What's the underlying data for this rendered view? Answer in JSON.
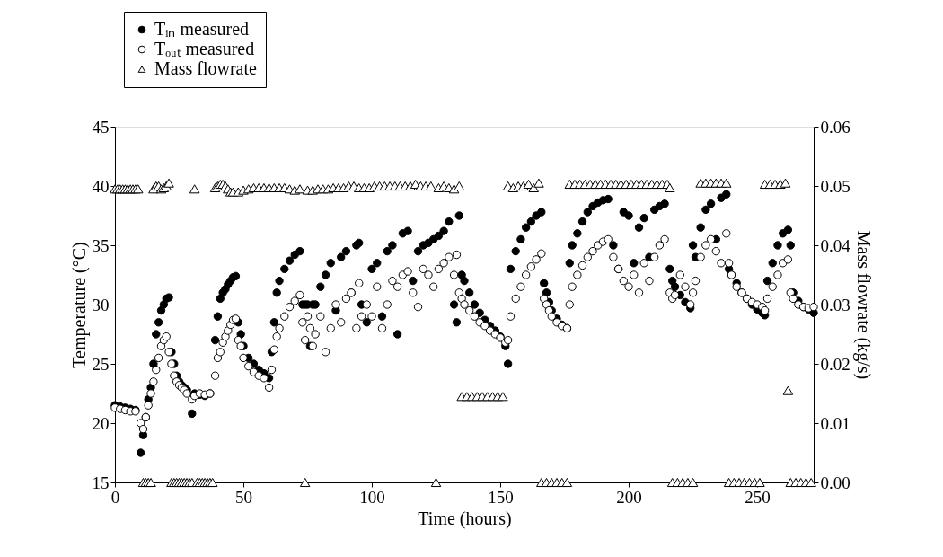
{
  "chart_data": {
    "type": "scatter",
    "xlabel": "Time (hours)",
    "ylabel": "Temperature (°C)",
    "y2label": "Mass flowrate (kg/s)",
    "xlim": [
      0,
      272
    ],
    "xticks": [
      0,
      50,
      100,
      150,
      200,
      250
    ],
    "ylim": [
      15,
      45
    ],
    "yticks": [
      15,
      20,
      25,
      30,
      35,
      40,
      45
    ],
    "y2lim": [
      0,
      0.06
    ],
    "y2ticks": [
      {
        "value": 0,
        "label": "0.00"
      },
      0.01,
      0.02,
      0.03,
      0.04,
      0.05,
      0.06
    ],
    "legend": "top left",
    "series": [
      {
        "name": "Tᵢₙ measured",
        "color": "#000000",
        "marker": "circle",
        "x": [
          0,
          2,
          4,
          6,
          8,
          10,
          11,
          12,
          13,
          14,
          15,
          16,
          17,
          18,
          19,
          20,
          21,
          22,
          23,
          24,
          25,
          26,
          27,
          28,
          30,
          31,
          33,
          35,
          37,
          39,
          40,
          41,
          42,
          43,
          44,
          45,
          46,
          47,
          48,
          49,
          50,
          52,
          54,
          56,
          58,
          60,
          61,
          62,
          63,
          64,
          66,
          68,
          70,
          72,
          73,
          74,
          75,
          76,
          77,
          78,
          80,
          82,
          84,
          86,
          88,
          90,
          92,
          94,
          95,
          96,
          98,
          100,
          102,
          104,
          106,
          108,
          110,
          112,
          114,
          116,
          118,
          120,
          122,
          124,
          126,
          128,
          130,
          132,
          133,
          134,
          135,
          136,
          138,
          140,
          142,
          144,
          146,
          148,
          150,
          152,
          153,
          154,
          156,
          158,
          160,
          162,
          164,
          166,
          167,
          168,
          169,
          170,
          172,
          174,
          176,
          177,
          178,
          180,
          182,
          184,
          186,
          188,
          190,
          192,
          194,
          196,
          198,
          200,
          202,
          204,
          206,
          208,
          210,
          212,
          214,
          216,
          217,
          218,
          220,
          222,
          224,
          225,
          226,
          228,
          230,
          232,
          234,
          236,
          238,
          239,
          240,
          242,
          244,
          246,
          248,
          250,
          252,
          253,
          254,
          256,
          258,
          260,
          262,
          263,
          264,
          266,
          268,
          270,
          272
        ],
        "values": [
          21.5,
          21.4,
          21.3,
          21.2,
          21.1,
          17.5,
          19,
          20.5,
          22,
          23,
          25,
          27.5,
          28.5,
          29.5,
          30,
          30.5,
          30.6,
          26,
          25,
          24,
          23.5,
          23.2,
          23,
          22.8,
          20.8,
          22.5,
          22.4,
          22.3,
          22.5,
          27,
          29,
          30.5,
          31,
          31.3,
          31.7,
          32,
          32.3,
          32.4,
          28.5,
          27.5,
          26.5,
          25.5,
          25,
          24.5,
          24.2,
          23.8,
          26,
          28.5,
          31,
          32,
          33,
          33.7,
          34.2,
          34.5,
          30,
          30,
          30,
          26.5,
          30,
          30,
          31.5,
          32.5,
          33.5,
          29.5,
          34,
          34.5,
          31,
          35,
          35.2,
          30,
          28.5,
          33,
          33.5,
          29,
          34.5,
          35,
          27.5,
          36,
          36.2,
          32,
          34.5,
          35,
          35.2,
          35.5,
          35.8,
          36.2,
          37,
          30,
          28.5,
          37.5,
          32.5,
          32,
          31,
          30,
          29.3,
          28.7,
          28.2,
          27.8,
          27.3,
          26.5,
          25,
          33,
          34.5,
          35.5,
          36.5,
          37,
          37.5,
          37.8,
          31.8,
          31,
          30.2,
          29.5,
          28.8,
          28.3,
          28,
          33.5,
          35,
          36,
          37,
          37.8,
          38.3,
          38.6,
          38.8,
          38.9,
          35,
          33,
          37.8,
          37.5,
          33.5,
          36.5,
          37.3,
          34,
          38,
          38.3,
          38.5,
          33,
          32,
          31.5,
          30.8,
          30.2,
          29.7,
          35,
          34,
          36.5,
          38,
          38.5,
          35.5,
          39,
          39.3,
          33,
          32.5,
          31.8,
          31,
          30.5,
          30,
          29.6,
          29.3,
          29.1,
          32,
          33.5,
          35,
          36,
          36.3,
          35,
          31,
          30.3,
          29.8,
          29.6,
          29.3
        ]
      },
      {
        "name": "Tₒᵤₜ measured",
        "color": "#ffffff",
        "marker": "circle",
        "x": [
          0,
          2,
          4,
          6,
          8,
          10,
          11,
          12,
          13,
          14,
          15,
          16,
          17,
          18,
          19,
          20,
          21,
          22,
          23,
          24,
          25,
          26,
          27,
          28,
          30,
          31,
          33,
          35,
          37,
          39,
          40,
          41,
          42,
          43,
          44,
          45,
          46,
          47,
          48,
          49,
          50,
          52,
          54,
          56,
          58,
          60,
          61,
          62,
          63,
          64,
          66,
          68,
          70,
          72,
          73,
          74,
          75,
          76,
          77,
          78,
          80,
          82,
          84,
          86,
          88,
          90,
          92,
          94,
          95,
          96,
          98,
          100,
          102,
          104,
          106,
          108,
          110,
          112,
          114,
          116,
          118,
          120,
          122,
          124,
          126,
          128,
          130,
          132,
          133,
          134,
          135,
          136,
          138,
          140,
          142,
          144,
          146,
          148,
          150,
          152,
          153,
          154,
          156,
          158,
          160,
          162,
          164,
          166,
          167,
          168,
          169,
          170,
          172,
          174,
          176,
          177,
          178,
          180,
          182,
          184,
          186,
          188,
          190,
          192,
          194,
          196,
          198,
          200,
          202,
          204,
          206,
          208,
          210,
          212,
          214,
          216,
          217,
          218,
          220,
          222,
          224,
          225,
          226,
          228,
          230,
          232,
          234,
          236,
          238,
          239,
          240,
          242,
          244,
          246,
          248,
          250,
          252,
          253,
          254,
          256,
          258,
          260,
          262,
          263,
          264,
          266,
          268,
          270,
          272
        ],
        "values": [
          21.3,
          21.2,
          21.1,
          21,
          21,
          20,
          19.5,
          20.5,
          21.5,
          22.5,
          23.5,
          24.5,
          25.5,
          26.5,
          27,
          27.3,
          26,
          25,
          24,
          23.5,
          23.2,
          23,
          22.8,
          22.5,
          22,
          22.3,
          22.5,
          22.4,
          22.5,
          24,
          25.5,
          26,
          26.8,
          27.3,
          27.8,
          28.3,
          28.7,
          28.8,
          27,
          26.5,
          25.5,
          24.8,
          24.3,
          24,
          23.8,
          23,
          24.5,
          26.2,
          27.3,
          28,
          29,
          29.8,
          30.3,
          30.8,
          28.5,
          27,
          29,
          28,
          26.5,
          27.5,
          29,
          26,
          28,
          30,
          28.5,
          30.5,
          31,
          28,
          31.8,
          29,
          30,
          29,
          31.5,
          28,
          30,
          32,
          31.5,
          32.5,
          32.8,
          31,
          29.8,
          33,
          32.5,
          31.5,
          33,
          33.5,
          34,
          32.5,
          34.2,
          31,
          30.5,
          30,
          29.5,
          29,
          28.5,
          28.2,
          27.8,
          27.5,
          27.2,
          26.8,
          27,
          29,
          30.5,
          31.5,
          32.5,
          33.2,
          33.8,
          34.3,
          30.5,
          30,
          29.5,
          29,
          28.5,
          28.2,
          28,
          30,
          31.5,
          32.5,
          33.3,
          34,
          34.5,
          35,
          35.3,
          35.5,
          34,
          33,
          32,
          31.5,
          32.5,
          31,
          33.5,
          32,
          34,
          35,
          35.5,
          31,
          30.5,
          30.8,
          32.5,
          31.5,
          30,
          31,
          32,
          34,
          35,
          35.5,
          34.5,
          33.5,
          36,
          33.5,
          32.5,
          31.5,
          31,
          30.5,
          30.2,
          30,
          29.8,
          29.5,
          30.5,
          31.5,
          32.5,
          33.5,
          33.8,
          31,
          30.5,
          30,
          29.8,
          29.7,
          29.8
        ]
      },
      {
        "name": "Mass flowrate",
        "color": "#ffffff",
        "marker": "triangle",
        "axis": "y2",
        "x": [
          0,
          1,
          2,
          3,
          4,
          5,
          6,
          7,
          8,
          9,
          11,
          12,
          13,
          14,
          15,
          16,
          17,
          18,
          19,
          20,
          21,
          22,
          23,
          24,
          25,
          26,
          27,
          28,
          29,
          30,
          31,
          32,
          33,
          34,
          35,
          36,
          37,
          38,
          39,
          40,
          41,
          42,
          43,
          44,
          45,
          46,
          48,
          50,
          52,
          54,
          56,
          58,
          60,
          62,
          64,
          66,
          68,
          70,
          72,
          74,
          75,
          77,
          79,
          81,
          83,
          85,
          87,
          89,
          91,
          93,
          95,
          97,
          99,
          101,
          103,
          105,
          107,
          109,
          111,
          113,
          115,
          117,
          119,
          121,
          123,
          125,
          126,
          128,
          130,
          132,
          134,
          135,
          137,
          139,
          141,
          143,
          145,
          147,
          149,
          151,
          153,
          155,
          157,
          159,
          161,
          163,
          165,
          166,
          168,
          170,
          172,
          174,
          176,
          177,
          179,
          181,
          183,
          185,
          187,
          189,
          191,
          193,
          195,
          197,
          199,
          201,
          203,
          205,
          207,
          209,
          211,
          213,
          215,
          216,
          217,
          219,
          221,
          223,
          225,
          228,
          230,
          232,
          234,
          236,
          238,
          239,
          241,
          243,
          245,
          247,
          249,
          251,
          253,
          255,
          257,
          259,
          261,
          262,
          263,
          265,
          267,
          269,
          271
        ],
        "values": [
          0.0495,
          0.0495,
          0.0495,
          0.0495,
          0.0495,
          0.0495,
          0.0495,
          0.0495,
          0.0495,
          0.0495,
          0,
          0,
          0,
          0,
          0.0495,
          0.05,
          0.05,
          0.0495,
          0.0497,
          0.05,
          0.0505,
          0,
          0,
          0,
          0,
          0,
          0,
          0,
          0,
          0,
          0.0495,
          0,
          0,
          0,
          0,
          0,
          0,
          0,
          0.0497,
          0.05,
          0.0503,
          0.0503,
          0.05,
          0.0495,
          0.049,
          0.049,
          0.049,
          0.0493,
          0.0495,
          0.0497,
          0.0497,
          0.0497,
          0.0497,
          0.0497,
          0.0497,
          0.0497,
          0.0495,
          0.0493,
          0.0495,
          0,
          0.0493,
          0.0493,
          0.0495,
          0.0495,
          0.0495,
          0.0497,
          0.0497,
          0.0497,
          0.05,
          0.05,
          0.0497,
          0.0497,
          0.0497,
          0.05,
          0.05,
          0.05,
          0.05,
          0.05,
          0.05,
          0.05,
          0.05,
          0.0503,
          0.05,
          0.05,
          0.05,
          0,
          0.0497,
          0.05,
          0.0497,
          0.0495,
          0.05,
          0.0145,
          0.0145,
          0.0145,
          0.0145,
          0.0145,
          0.0145,
          0.0145,
          0.0145,
          0.0145,
          0.05,
          0.0497,
          0.05,
          0.05,
          0.0503,
          0.0497,
          0.0505,
          0,
          0,
          0,
          0,
          0,
          0,
          0.0503,
          0.0503,
          0.0503,
          0.0503,
          0.0503,
          0.0503,
          0.0503,
          0.0503,
          0.0503,
          0.0503,
          0.0503,
          0.0503,
          0.0503,
          0.0503,
          0.0503,
          0.0503,
          0.0503,
          0.0503,
          0.0503,
          0.0503,
          0.0497,
          0,
          0,
          0,
          0,
          0,
          0.0505,
          0.0505,
          0.0505,
          0.0505,
          0.0505,
          0.0505,
          0,
          0,
          0,
          0,
          0,
          0,
          0,
          0.0503,
          0.0503,
          0.0503,
          0.0503,
          0.0505,
          0.0155,
          0,
          0,
          0,
          0,
          0
        ]
      }
    ]
  }
}
